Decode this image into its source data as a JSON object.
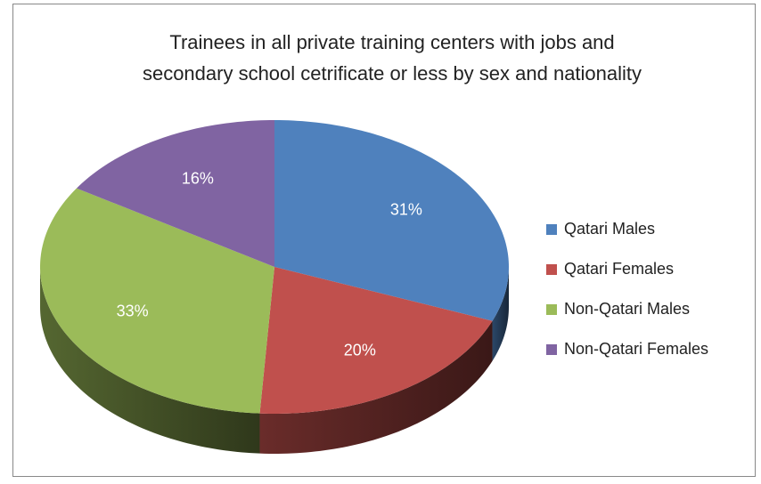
{
  "chart_data": {
    "type": "pie3d",
    "title": "Trainees in all private training centers with jobs and secondary school cetrificate or less by sex and nationality",
    "categories": [
      "Qatari Males",
      "Qatari Females",
      "Non-Qatari Males",
      "Non-Qatari Females"
    ],
    "values": [
      31,
      20,
      33,
      16
    ],
    "value_labels": [
      "31%",
      "20%",
      "33%",
      "16%"
    ],
    "colors": [
      "#4f81bd",
      "#c0504d",
      "#9bbb59",
      "#8064a2"
    ],
    "legend": "right"
  }
}
